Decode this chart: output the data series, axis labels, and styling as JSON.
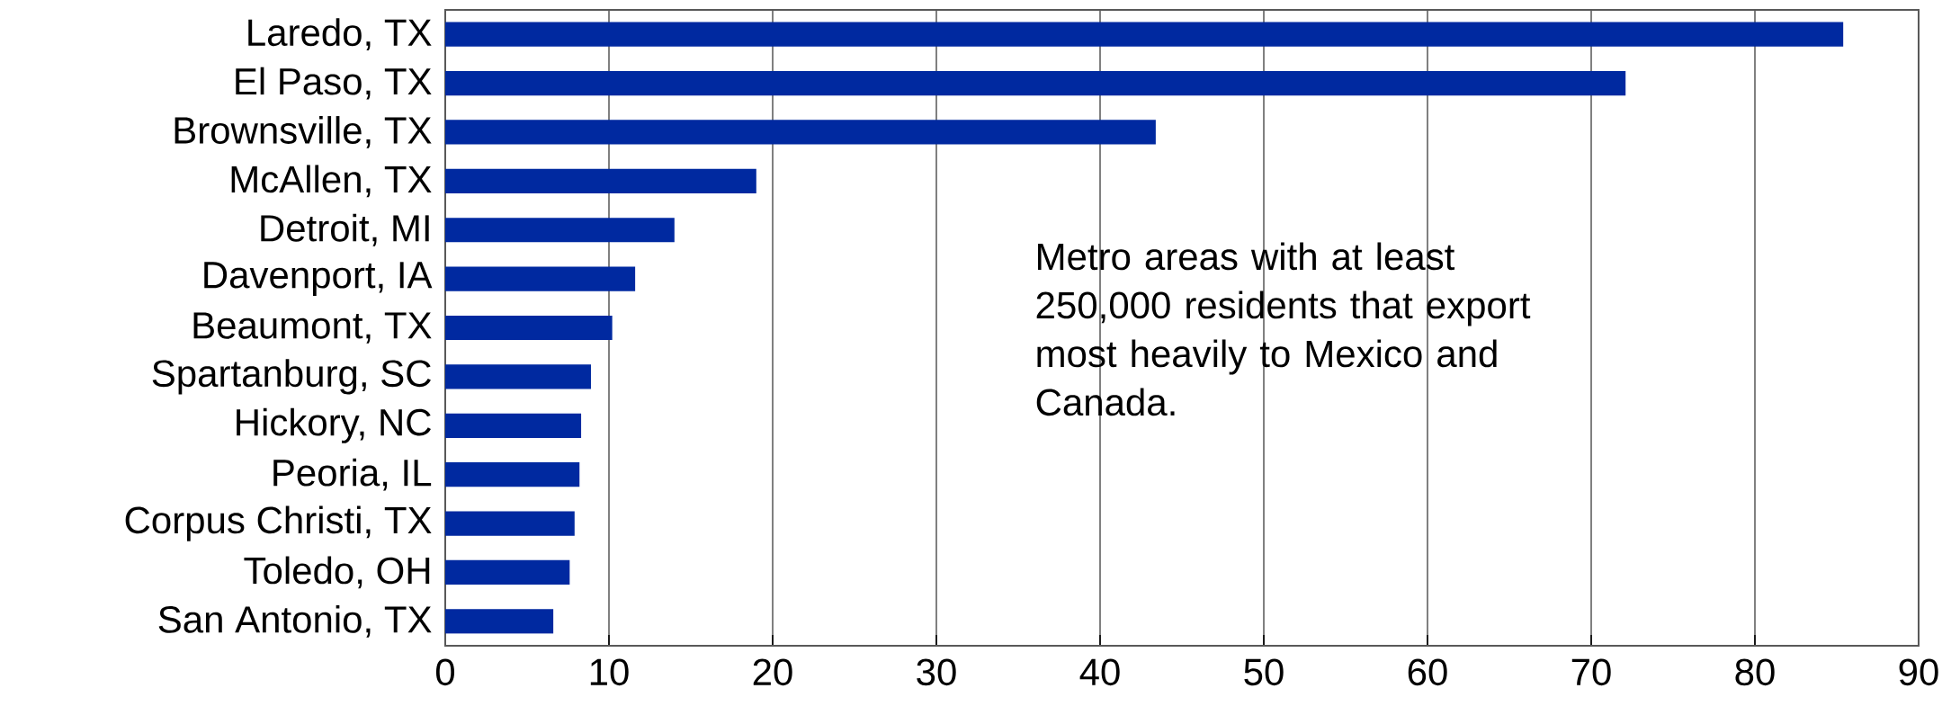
{
  "chart_data": {
    "type": "bar",
    "orientation": "horizontal",
    "categories": [
      "Laredo, TX",
      "El Paso, TX",
      "Brownsville, TX",
      "McAllen, TX",
      "Detroit, MI",
      "Davenport, IA",
      "Beaumont, TX",
      "Spartanburg, SC",
      "Hickory, NC",
      "Peoria, IL",
      "Corpus Christi, TX",
      "Toledo, OH",
      "San Antonio, TX"
    ],
    "values": [
      85.4,
      72.1,
      43.4,
      19.0,
      14.0,
      11.6,
      10.2,
      8.9,
      8.3,
      8.2,
      7.9,
      7.6,
      6.6
    ],
    "color": "#0029a0",
    "xlim": [
      0,
      90
    ],
    "xticks": [
      0,
      10,
      20,
      30,
      40,
      50,
      60,
      70,
      80,
      90
    ],
    "grid": "x",
    "annotations": [
      "Metro areas with at least 250,000 residents that export most heavily to Mexico and Canada."
    ]
  }
}
